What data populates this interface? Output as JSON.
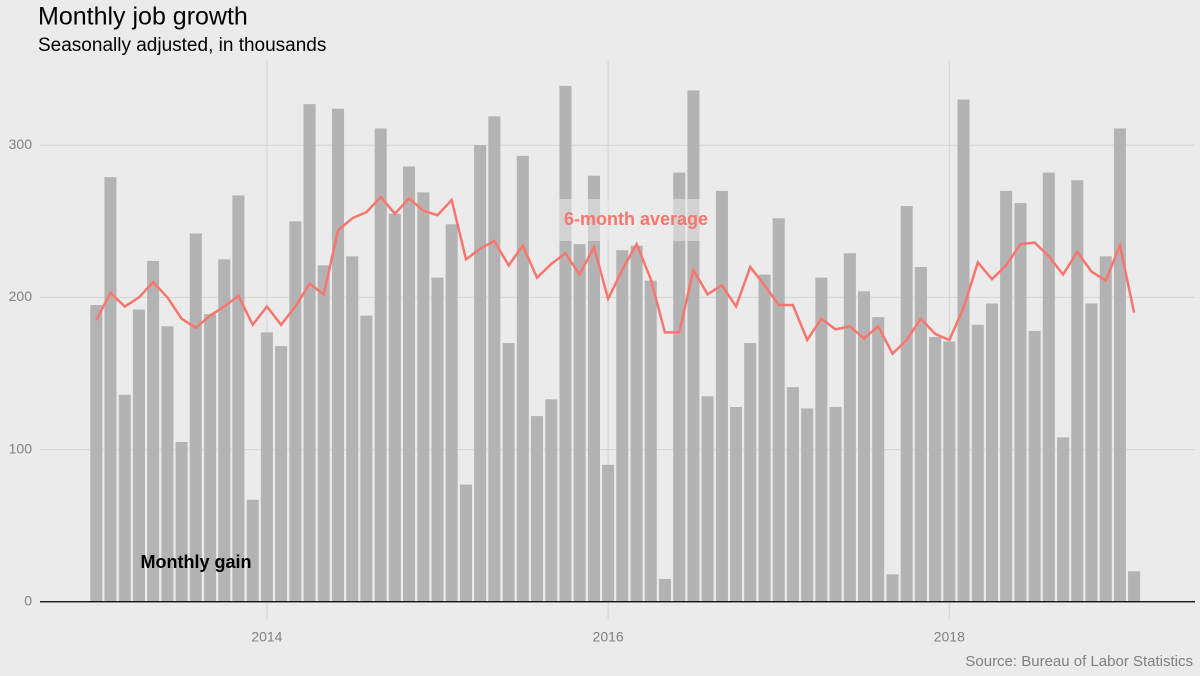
{
  "chart_data": {
    "type": "bar",
    "title": "Monthly job growth",
    "subtitle": "Seasonally adjusted, in thousands",
    "source": "Source: Bureau of Labor Statistics",
    "x": [
      2013,
      2013.083,
      2013.167,
      2013.25,
      2013.333,
      2013.417,
      2013.5,
      2013.583,
      2013.667,
      2013.75,
      2013.833,
      2013.917,
      2014,
      2014.083,
      2014.167,
      2014.25,
      2014.333,
      2014.417,
      2014.5,
      2014.583,
      2014.667,
      2014.75,
      2014.833,
      2014.917,
      2015,
      2015.083,
      2015.167,
      2015.25,
      2015.333,
      2015.417,
      2015.5,
      2015.583,
      2015.667,
      2015.75,
      2015.833,
      2015.917,
      2016,
      2016.083,
      2016.167,
      2016.25,
      2016.333,
      2016.417,
      2016.5,
      2016.583,
      2016.667,
      2016.75,
      2016.833,
      2016.917,
      2017,
      2017.083,
      2017.167,
      2017.25,
      2017.333,
      2017.417,
      2017.5,
      2017.583,
      2017.667,
      2017.75,
      2017.833,
      2017.917,
      2018,
      2018.083,
      2018.167,
      2018.25,
      2018.333,
      2018.417,
      2018.5,
      2018.583,
      2018.667,
      2018.75,
      2018.833,
      2018.917,
      2019,
      2019.083
    ],
    "series": [
      {
        "name": "Monthly gain",
        "type": "bar",
        "color": "#b3b3b3",
        "values": [
          195,
          279,
          136,
          192,
          224,
          181,
          105,
          242,
          189,
          225,
          267,
          67,
          177,
          168,
          250,
          327,
          221,
          324,
          227,
          188,
          311,
          255,
          286,
          269,
          213,
          248,
          77,
          300,
          319,
          170,
          293,
          122,
          133,
          339,
          235,
          280,
          90,
          231,
          234,
          211,
          15,
          282,
          336,
          135,
          270,
          128,
          170,
          215,
          252,
          141,
          127,
          213,
          128,
          229,
          204,
          187,
          18,
          260,
          220,
          174,
          171,
          330,
          182,
          196,
          270,
          262,
          178,
          282,
          108,
          277,
          196,
          227,
          311,
          20
        ]
      },
      {
        "name": "6-month average",
        "type": "line",
        "color": "#f8766d",
        "values": [
          185,
          203,
          194,
          200,
          210,
          200,
          186,
          180,
          188,
          194,
          201,
          182,
          194,
          182,
          194,
          209,
          202,
          244,
          252,
          256,
          266,
          255,
          265,
          257,
          254,
          264,
          225,
          232,
          237,
          221,
          234,
          213,
          222,
          229,
          215,
          233,
          199,
          218,
          235,
          212,
          177,
          177,
          218,
          202,
          208,
          194,
          220,
          208,
          195,
          195,
          172,
          186,
          179,
          181,
          173,
          181,
          163,
          172,
          186,
          176,
          172,
          193,
          223,
          212,
          221,
          235,
          236,
          227,
          215,
          230,
          217,
          211,
          234,
          190
        ]
      }
    ],
    "xlim": [
      2012.67,
      2019.44
    ],
    "xticks": [
      2014,
      2016,
      2018
    ],
    "ylim": [
      -12,
      356
    ],
    "yticks": [
      0,
      100,
      200,
      300
    ],
    "grid": true
  }
}
